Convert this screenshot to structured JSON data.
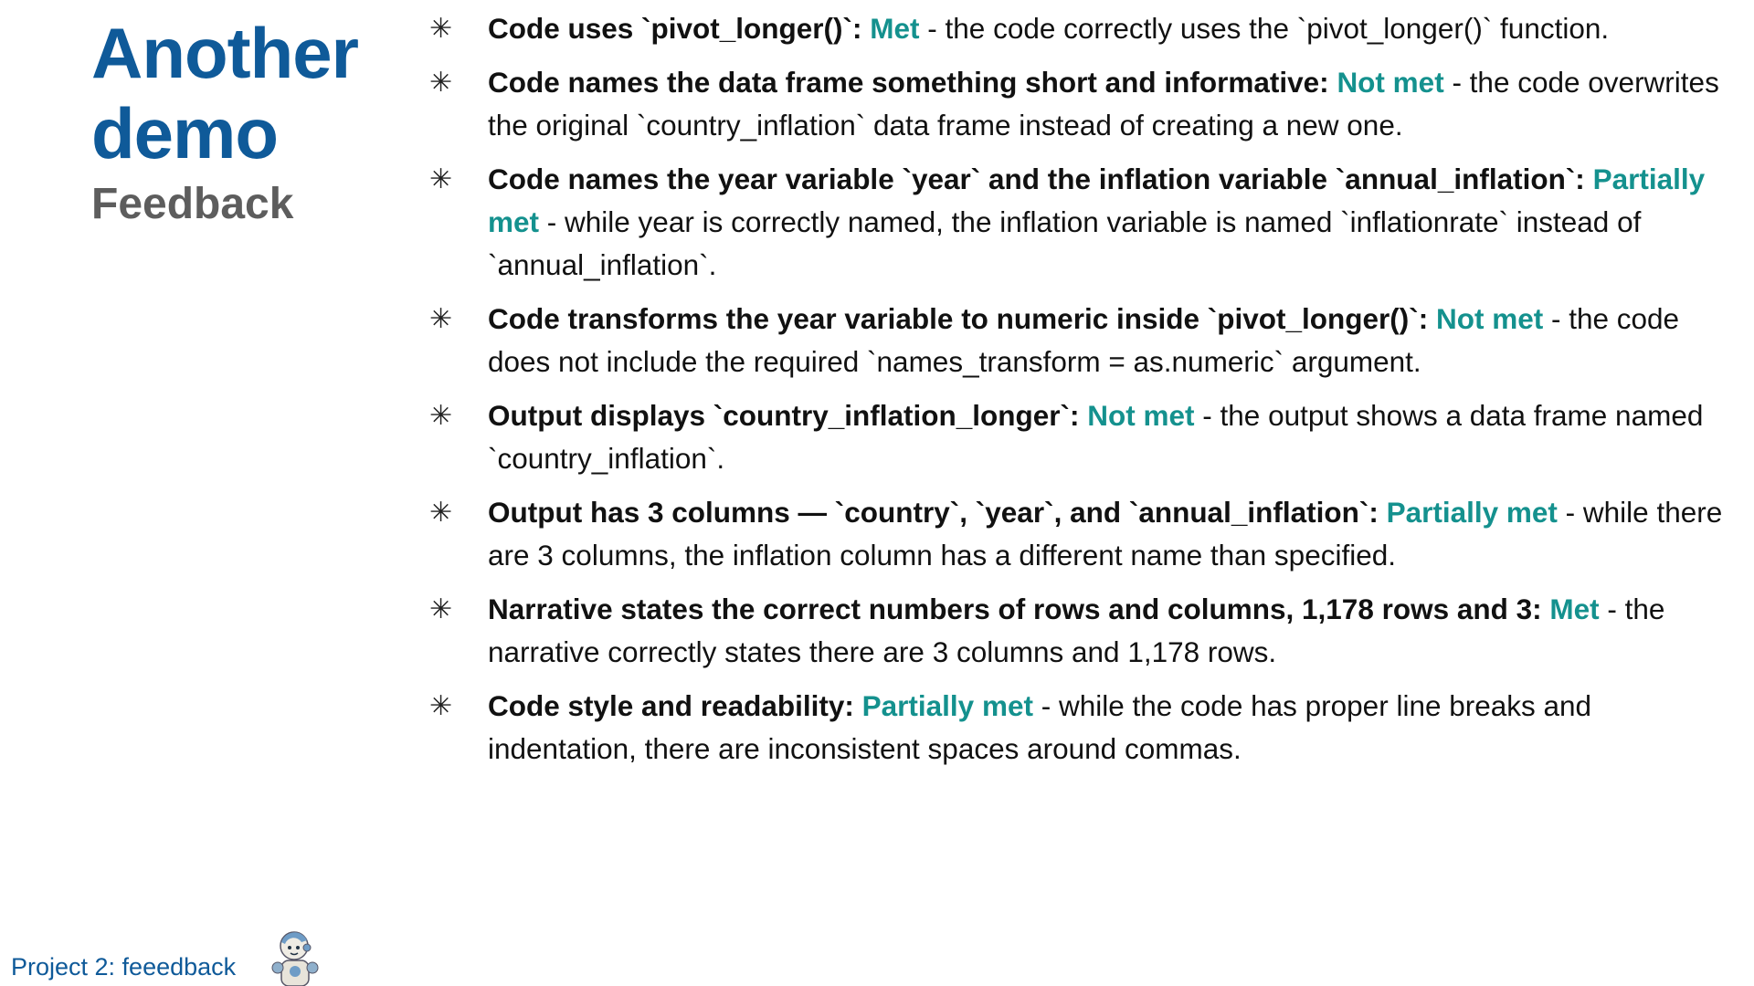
{
  "title": "Another demo",
  "subtitle": "Feedback",
  "colors": {
    "title": "#0f5a99",
    "status": "#14918e",
    "subtitle": "#5d5d5d"
  },
  "bullet_icon": "asterisk",
  "items": [
    {
      "criterion": "Code uses `pivot_longer()`:",
      "status": "Met",
      "comment": " - the code correctly uses the `pivot_longer()` function."
    },
    {
      "criterion": "Code names the data frame something short and informative:",
      "status": "Not met",
      "comment": " - the code overwrites the original `country_inflation` data frame instead of creating a new one."
    },
    {
      "criterion": "Code names the year variable `year` and the inflation variable `annual_inflation`:",
      "status": "Partially met",
      "comment": " - while year is correctly named, the inflation variable is named `inflationrate` instead of `annual_inflation`."
    },
    {
      "criterion": "Code transforms the year variable to numeric inside `pivot_longer()`:",
      "status": "Not met",
      "comment": " - the code does not include the required `names_transform = as.numeric` argument."
    },
    {
      "criterion": "Output displays `country_inflation_longer`:",
      "status": "Not met",
      "comment": " - the output shows a data frame named `country_inflation`."
    },
    {
      "criterion": "Output has 3 columns — `country`, `year`, and `annual_inflation`:",
      "status": "Partially met",
      "comment": " - while there are 3 columns, the inflation column has a different name than specified."
    },
    {
      "criterion": "Narrative states the correct numbers of rows and columns, 1,178 rows and 3:",
      "status": "Met",
      "comment": " - the narrative correctly states there are 3 columns and 1,178 rows."
    },
    {
      "criterion": "Code style and readability:",
      "status": "Partially met",
      "comment": " - while the code has proper line breaks and indentation, there are inconsistent spaces around commas."
    }
  ],
  "footer": "Project 2: feeedback"
}
